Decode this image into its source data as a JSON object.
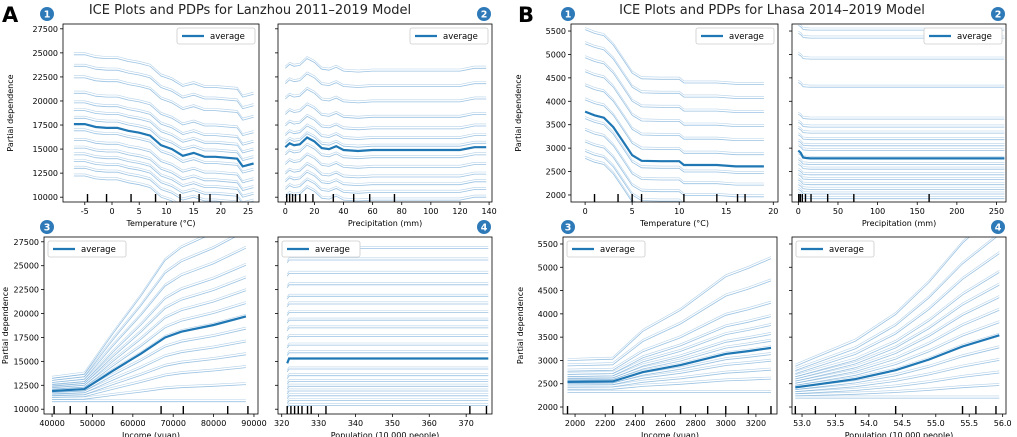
{
  "figure": {
    "panel_letters": [
      "A",
      "B"
    ],
    "titles": [
      "ICE Plots and PDPs for Lanzhou 2011–2019 Model",
      "ICE Plots and PDPs for Lhasa 2014–2019 Model"
    ]
  },
  "colors": {
    "line": "#1f77b4",
    "ice": "#6fa8d6",
    "badge": "#2e7ab8",
    "axis": "#000000"
  },
  "chart_data": [
    {
      "type": "line",
      "id": "A1",
      "badge": "1",
      "xlabel": "Temperature (°C)",
      "ylabel": "Partial dependence",
      "xlim": [
        -9,
        27
      ],
      "ylim": [
        9500,
        28000
      ],
      "legend": "average",
      "legend_placement": "top-right",
      "xticks": [
        -5,
        0,
        5,
        10,
        15,
        20,
        25
      ],
      "yticks": [
        10000,
        12500,
        15000,
        17500,
        20000,
        22500,
        25000,
        27500
      ],
      "ytick_labels": [
        "10000",
        "12500",
        "15000",
        "17500",
        "20000",
        "22500",
        "25000",
        "27500"
      ],
      "x": [
        -7,
        -5,
        -3,
        -1,
        1,
        3,
        5,
        7,
        9,
        11,
        13,
        15,
        17,
        19,
        21,
        23,
        24,
        26
      ],
      "average": [
        17600,
        17600,
        17300,
        17200,
        17200,
        16900,
        16700,
        16400,
        15400,
        15000,
        14300,
        14600,
        14200,
        14200,
        14100,
        14000,
        13200,
        13500
      ],
      "ice_offsets": [
        7200,
        6000,
        4800,
        3200,
        2200,
        1400,
        600,
        -700,
        -1700,
        -2500,
        -3200,
        -3900,
        -4600,
        -5400
      ],
      "rug": [
        -4.5,
        -1,
        3.5,
        8,
        12.5,
        16,
        18,
        23
      ]
    },
    {
      "type": "line",
      "id": "A2",
      "badge": "2",
      "xlabel": "Precipitation (mm)",
      "ylabel": "",
      "xlim": [
        -5,
        142
      ],
      "ylim": [
        9500,
        28000
      ],
      "legend": "average",
      "legend_placement": "top-right",
      "xticks": [
        0,
        20,
        40,
        60,
        80,
        100,
        120,
        140
      ],
      "yticks": [
        10000,
        12500,
        15000,
        17500,
        20000,
        22500,
        25000,
        27500
      ],
      "ytick_labels": [],
      "x": [
        0,
        3,
        6,
        10,
        15,
        20,
        25,
        30,
        35,
        40,
        50,
        60,
        80,
        100,
        120,
        130,
        138
      ],
      "average": [
        15200,
        15600,
        15400,
        15500,
        16200,
        15800,
        15100,
        15000,
        15300,
        14900,
        14800,
        14900,
        14900,
        14900,
        14900,
        15200,
        15200
      ],
      "ice_offsets": [
        8200,
        6600,
        5000,
        3400,
        2200,
        1200,
        400,
        -800,
        -1800,
        -2800,
        -3600,
        -4400,
        -5200
      ],
      "rug": [
        1,
        3,
        5,
        7,
        10,
        14,
        19,
        33,
        47,
        58,
        75
      ]
    },
    {
      "type": "line",
      "id": "A3",
      "badge": "3",
      "xlabel": "Income (yuan)",
      "ylabel": "Partial dependence",
      "xlim": [
        38000,
        91000
      ],
      "ylim": [
        9500,
        28000
      ],
      "legend": "average",
      "legend_placement": "top-left",
      "xticks": [
        40000,
        50000,
        60000,
        70000,
        80000,
        90000
      ],
      "yticks": [
        10000,
        12500,
        15000,
        17500,
        20000,
        22500,
        25000,
        27500
      ],
      "ytick_labels": [
        "10000",
        "12500",
        "15000",
        "17500",
        "20000",
        "22500",
        "25000",
        "27500"
      ],
      "x": [
        40000,
        48000,
        55000,
        62000,
        68000,
        72000,
        80000,
        88000
      ],
      "average": [
        11900,
        12100,
        14000,
        15800,
        17500,
        18100,
        18800,
        19700
      ],
      "ice_spreads": [
        -1.0,
        -0.8,
        -0.6,
        -0.45,
        -0.3,
        -0.15,
        0,
        0.15,
        0.3,
        0.45,
        0.6,
        0.8,
        1.0,
        1.2
      ],
      "rug": [
        40500,
        44500,
        48500,
        55000,
        67000,
        72500,
        83500,
        88500
      ]
    },
    {
      "type": "line",
      "id": "A4",
      "badge": "4",
      "xlabel": "Population (10,000 people)",
      "ylabel": "",
      "xlim": [
        319,
        377
      ],
      "ylim": [
        9500,
        28000
      ],
      "legend": "average",
      "legend_placement": "top-left",
      "xticks": [
        320,
        330,
        340,
        350,
        360,
        370
      ],
      "yticks": [
        10000,
        12500,
        15000,
        17500,
        20000,
        22500,
        25000,
        27500
      ],
      "ytick_labels": [],
      "x": [
        321.5,
        322,
        323,
        325,
        330,
        340,
        360,
        376
      ],
      "average": [
        14800,
        15300,
        15300,
        15300,
        15300,
        15300,
        15300,
        15300
      ],
      "ice_levels": [
        26800,
        25600,
        24200,
        23000,
        21800,
        21000,
        20100,
        19300,
        18500,
        17600,
        16700,
        15900,
        14200,
        13500,
        12900,
        12400,
        11900,
        11400,
        10900,
        10400
      ],
      "rug": [
        321.5,
        322.5,
        323.5,
        324.5,
        325.5,
        327,
        328,
        332,
        371,
        375.5
      ]
    },
    {
      "type": "line",
      "id": "B1",
      "badge": "1",
      "xlabel": "Temperature (°C)",
      "ylabel": "Partial dependence",
      "xlim": [
        -1.5,
        20.5
      ],
      "ylim": [
        1850,
        5650
      ],
      "legend": "average",
      "legend_placement": "top-right",
      "xticks": [
        0,
        5,
        10,
        15,
        20
      ],
      "yticks": [
        2000,
        2500,
        3000,
        3500,
        4000,
        4500,
        5000,
        5500
      ],
      "ytick_labels": [
        "2000",
        "2500",
        "3000",
        "3500",
        "4000",
        "4500",
        "5000",
        "5500"
      ],
      "x": [
        0,
        1,
        2,
        3,
        4,
        5,
        6,
        8,
        10,
        10.5,
        14,
        16,
        19
      ],
      "average": [
        3780,
        3700,
        3650,
        3450,
        3150,
        2850,
        2730,
        2720,
        2720,
        2640,
        2640,
        2610,
        2610
      ],
      "ice_offsets": [
        1750,
        1450,
        1150,
        850,
        550,
        250,
        -150,
        -400,
        -650,
        -850,
        -1000
      ],
      "rug": [
        1,
        3.5,
        5,
        6,
        10.5,
        14,
        16.2,
        17
      ]
    },
    {
      "type": "line",
      "id": "B2",
      "badge": "2",
      "xlabel": "Precipitation (mm)",
      "ylabel": "",
      "xlim": [
        -8,
        262
      ],
      "ylim": [
        1850,
        5650
      ],
      "legend": "average",
      "legend_placement": "top-right",
      "xticks": [
        0,
        50,
        100,
        150,
        200,
        250
      ],
      "yticks": [
        2000,
        2500,
        3000,
        3500,
        4000,
        4500,
        5000,
        5500
      ],
      "ytick_labels": [],
      "x": [
        0,
        3,
        6,
        10,
        15,
        30,
        100,
        260
      ],
      "average": [
        2950,
        2900,
        2800,
        2790,
        2780,
        2780,
        2780,
        2780
      ],
      "ice_levels": [
        5520,
        5350,
        4900,
        4300,
        3620,
        3450,
        3320,
        3180,
        3050,
        2950,
        2780,
        2650,
        2550,
        2430,
        2330,
        2220,
        2120,
        2020,
        1920
      ],
      "rug": [
        0.5,
        2.5,
        5,
        9,
        16,
        37,
        70,
        165
      ]
    },
    {
      "type": "line",
      "id": "B3",
      "badge": "3",
      "xlabel": "Income (yuan)",
      "ylabel": "Partial dependence",
      "xlim": [
        1920,
        3340
      ],
      "ylim": [
        1850,
        5650
      ],
      "legend": "average",
      "legend_placement": "top-left",
      "xticks": [
        2000,
        2200,
        2400,
        2600,
        2800,
        3000,
        3200
      ],
      "yticks": [
        2000,
        2500,
        3000,
        3500,
        4000,
        4500,
        5000,
        5500
      ],
      "ytick_labels": [
        "2000",
        "2500",
        "3000",
        "3500",
        "4000",
        "4500",
        "5000",
        "5500"
      ],
      "x": [
        1950,
        2250,
        2450,
        2700,
        3000,
        3150,
        3300
      ],
      "average": [
        2540,
        2550,
        2750,
        2900,
        3140,
        3200,
        3270
      ],
      "ice_spreads": [
        -1.0,
        -0.7,
        -0.5,
        -0.3,
        -0.15,
        0,
        0.15,
        0.3,
        0.5,
        0.7,
        1.0,
        1.5,
        2.0
      ],
      "rug": [
        1950,
        2250,
        2450,
        2700,
        2880,
        3000,
        3150,
        3300
      ]
    },
    {
      "type": "line",
      "id": "B4",
      "badge": "4",
      "xlabel": "Population (10,000 people)",
      "ylabel": "",
      "xlim": [
        52.85,
        56.05
      ],
      "ylim": [
        1850,
        5650
      ],
      "legend": "average",
      "legend_placement": "top-left",
      "xticks": [
        53.0,
        53.5,
        54.0,
        54.5,
        55.0,
        55.5,
        56.0
      ],
      "xtick_labels": [
        "53.0",
        "53.5",
        "54.0",
        "54.5",
        "55.0",
        "55.5",
        "56.0"
      ],
      "yticks": [
        2000,
        2500,
        3000,
        3500,
        4000,
        4500,
        5000,
        5500
      ],
      "ytick_labels": [],
      "x": [
        52.9,
        53.2,
        53.8,
        54.4,
        54.9,
        55.4,
        55.95
      ],
      "average": [
        2420,
        2480,
        2600,
        2790,
        3020,
        3300,
        3540
      ],
      "ice_spreads": [
        -1.0,
        -0.8,
        -0.6,
        -0.4,
        -0.2,
        0,
        0.2,
        0.4,
        0.6,
        0.8,
        1.0,
        1.3,
        1.6,
        2.0
      ],
      "rug": [
        52.9,
        53.2,
        53.8,
        54.4,
        55.4,
        55.6,
        55.9
      ]
    }
  ]
}
